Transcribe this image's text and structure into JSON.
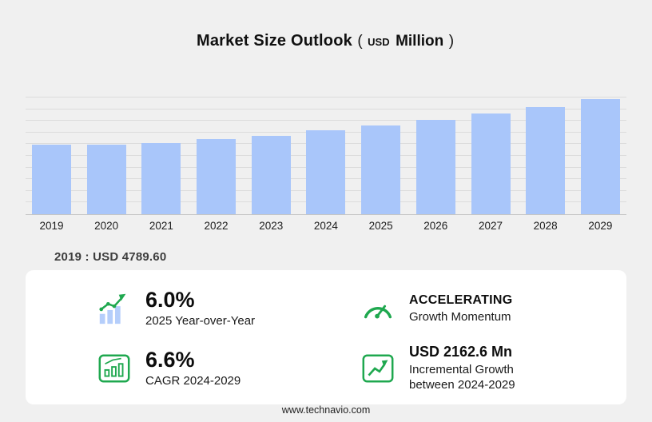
{
  "title": {
    "main": "Market Size Outlook",
    "paren_open": "(",
    "currency": "USD",
    "unit": "Million",
    "paren_close": ")"
  },
  "chart_data": {
    "type": "bar",
    "title": "Market Size Outlook (USD Million)",
    "categories": [
      "2019",
      "2020",
      "2021",
      "2022",
      "2023",
      "2024",
      "2025",
      "2026",
      "2027",
      "2028",
      "2029"
    ],
    "values": [
      4789.6,
      4750,
      4900,
      5130,
      5390,
      5740,
      6085,
      6470,
      6890,
      7350,
      7902.6
    ],
    "xlabel": "",
    "ylabel": "USD Million",
    "ylim": [
      0,
      8000
    ],
    "grid": true,
    "legend": "none",
    "bar_color": "#a9c6fa"
  },
  "base_callout": {
    "text": "2019 : USD 4789.60"
  },
  "stats": [
    {
      "icon": "yoy-bar-growth-icon",
      "value": "6.0%",
      "label": "2025 Year-over-Year"
    },
    {
      "icon": "gauge-icon",
      "value": "ACCELERATING",
      "label": "Growth Momentum"
    },
    {
      "icon": "cagr-chart-icon",
      "value": "6.6%",
      "label": "CAGR 2024-2029"
    },
    {
      "icon": "incremental-trend-icon",
      "value": "USD 2162.6 Mn",
      "label": "Incremental Growth between 2024-2029"
    }
  ],
  "footer": {
    "url": "www.technavio.com"
  },
  "colors": {
    "background": "#f0f0f0",
    "bar_blue": "#a9c6fa",
    "accent_green": "#1fa84f",
    "panel_white": "#ffffff"
  }
}
